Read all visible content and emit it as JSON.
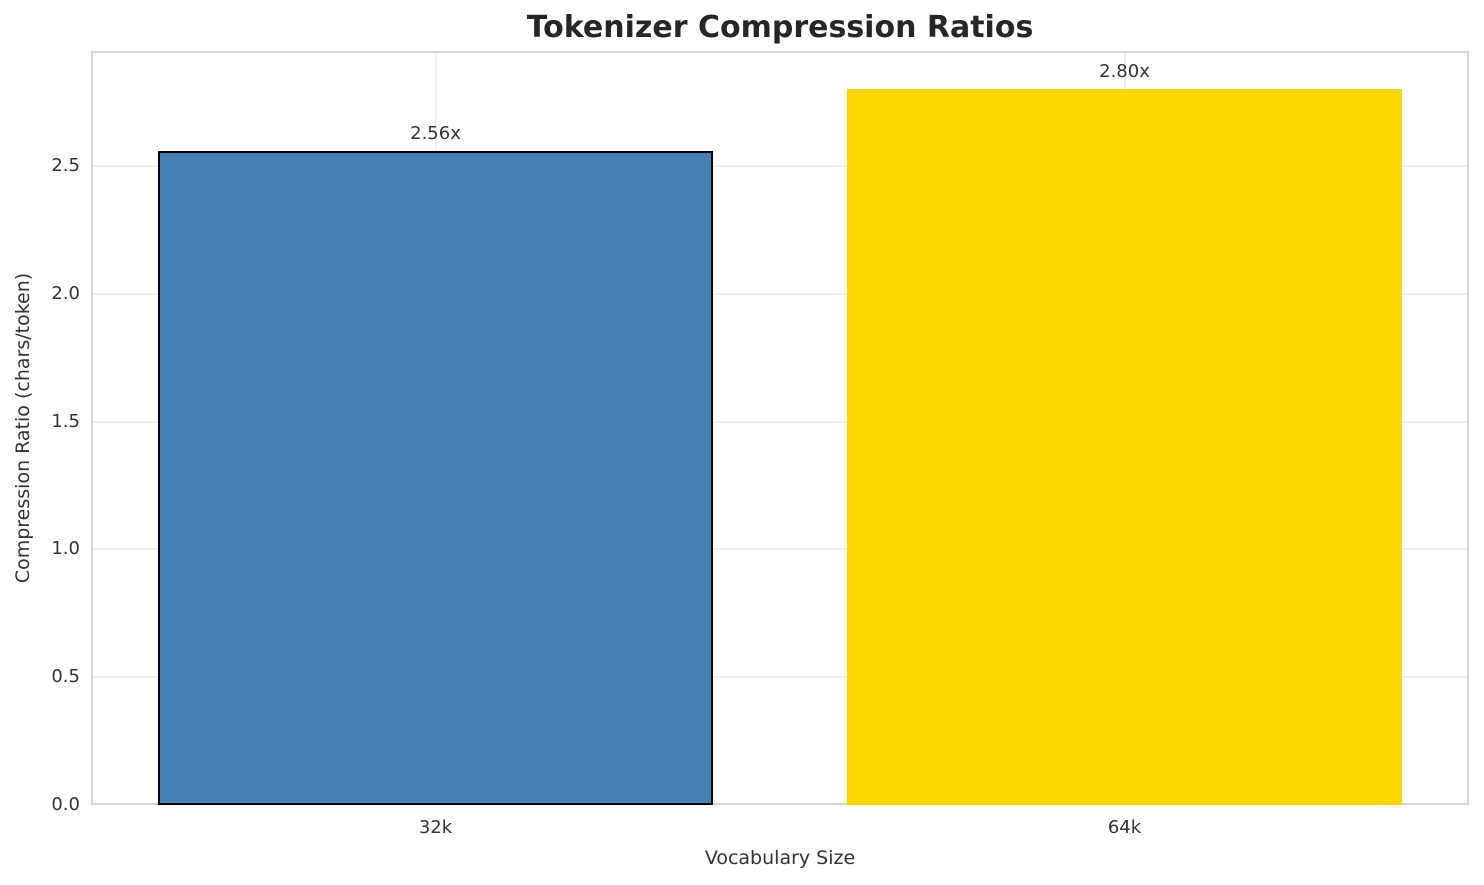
{
  "chart_data": {
    "type": "bar",
    "title": "Tokenizer Compression Ratios",
    "xlabel": "Vocabulary Size",
    "ylabel": "Compression Ratio (chars/token)",
    "categories": [
      "32k",
      "64k"
    ],
    "values": [
      2.56,
      2.8
    ],
    "bar_value_labels": [
      "2.56x",
      "2.80x"
    ],
    "bar_colors": [
      "#4682B4",
      "#FFD700"
    ],
    "bar_edge_colors": [
      "#000000",
      "none"
    ],
    "bar_width_fraction": 0.805,
    "ylim": [
      0,
      2.95
    ],
    "yticks": [
      0.0,
      0.5,
      1.0,
      1.5,
      2.0,
      2.5
    ],
    "ytick_labels": [
      "0.0",
      "0.5",
      "1.0",
      "1.5",
      "2.0",
      "2.5"
    ],
    "grid": true,
    "legend_position": "none"
  },
  "colors": {
    "bar_blue": "#4682B4",
    "bar_gold": "#FFD700",
    "bar_edge": "#000000",
    "grid": "#efefef",
    "spine": "#d4d4d4",
    "text": "#333333",
    "title": "#262626",
    "background": "#ffffff"
  }
}
